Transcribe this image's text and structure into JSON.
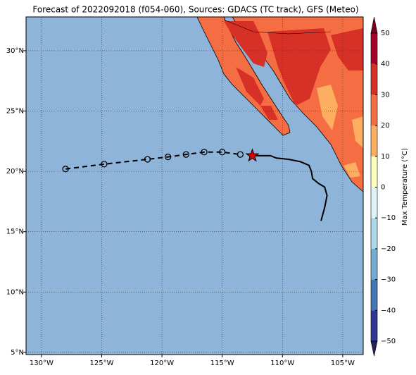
{
  "chart_data": {
    "type": "map",
    "title": "Forecast of 2022092018 (f054-060), Sources: GDACS (TC track), GFS (Meteo)",
    "xlim": [
      -131.28,
      -103.3
    ],
    "ylim": [
      4.82,
      32.8
    ],
    "xticks": [
      {
        "value": -130,
        "label": "130°W"
      },
      {
        "value": -125,
        "label": "125°W"
      },
      {
        "value": -120,
        "label": "120°W"
      },
      {
        "value": -115,
        "label": "115°W"
      },
      {
        "value": -110,
        "label": "110°W"
      },
      {
        "value": -105,
        "label": "105°W"
      }
    ],
    "yticks": [
      {
        "value": 5,
        "label": "5°N"
      },
      {
        "value": 10,
        "label": "10°N"
      },
      {
        "value": 15,
        "label": "15°N"
      },
      {
        "value": 20,
        "label": "20°N"
      },
      {
        "value": 25,
        "label": "25°N"
      },
      {
        "value": 30,
        "label": "30°N"
      }
    ],
    "grid": true,
    "ocean_color": "#8fb4d9",
    "colorbar": {
      "label": "Max Temperature (°C)",
      "lim": [
        -50,
        50
      ],
      "ticks": [
        {
          "value": -50,
          "label": "−50"
        },
        {
          "value": -40,
          "label": "−40"
        },
        {
          "value": -30,
          "label": "−30"
        },
        {
          "value": -20,
          "label": "−20"
        },
        {
          "value": -10,
          "label": "−10"
        },
        0,
        10,
        20,
        30,
        40,
        50
      ],
      "colors": [
        "#313695",
        "#4575b4",
        "#74add1",
        "#abd9e9",
        "#e0f3f8",
        "#ffffbf",
        "#fdae61",
        "#f46d43",
        "#d73027",
        "#a50026"
      ],
      "extend_colors": [
        "#24215e",
        "#7a0020"
      ]
    },
    "series": [
      {
        "style": "dashed",
        "marker": "circle",
        "color": "#000000",
        "x": [
          -128.0,
          -124.8,
          -121.2,
          -119.5,
          -118.0,
          -116.5,
          -115.0,
          -113.5
        ],
        "y": [
          20.2,
          20.6,
          21.0,
          21.2,
          21.4,
          21.6,
          21.6,
          21.4
        ]
      },
      {
        "style": "solid",
        "color": "#000000",
        "x": [
          -112.5,
          -111.0,
          -110.5,
          -109.5,
          -108.5,
          -107.8,
          -107.6,
          -107.5,
          -107.0,
          -106.5,
          -106.3,
          -106.5,
          -106.8
        ],
        "y": [
          21.3,
          21.3,
          21.1,
          21.0,
          20.8,
          20.5,
          20.0,
          19.4,
          19.0,
          18.7,
          18.0,
          17.0,
          15.9
        ]
      }
    ],
    "current_position": {
      "x": -112.5,
      "y": 21.3,
      "color": "#e00000"
    }
  }
}
